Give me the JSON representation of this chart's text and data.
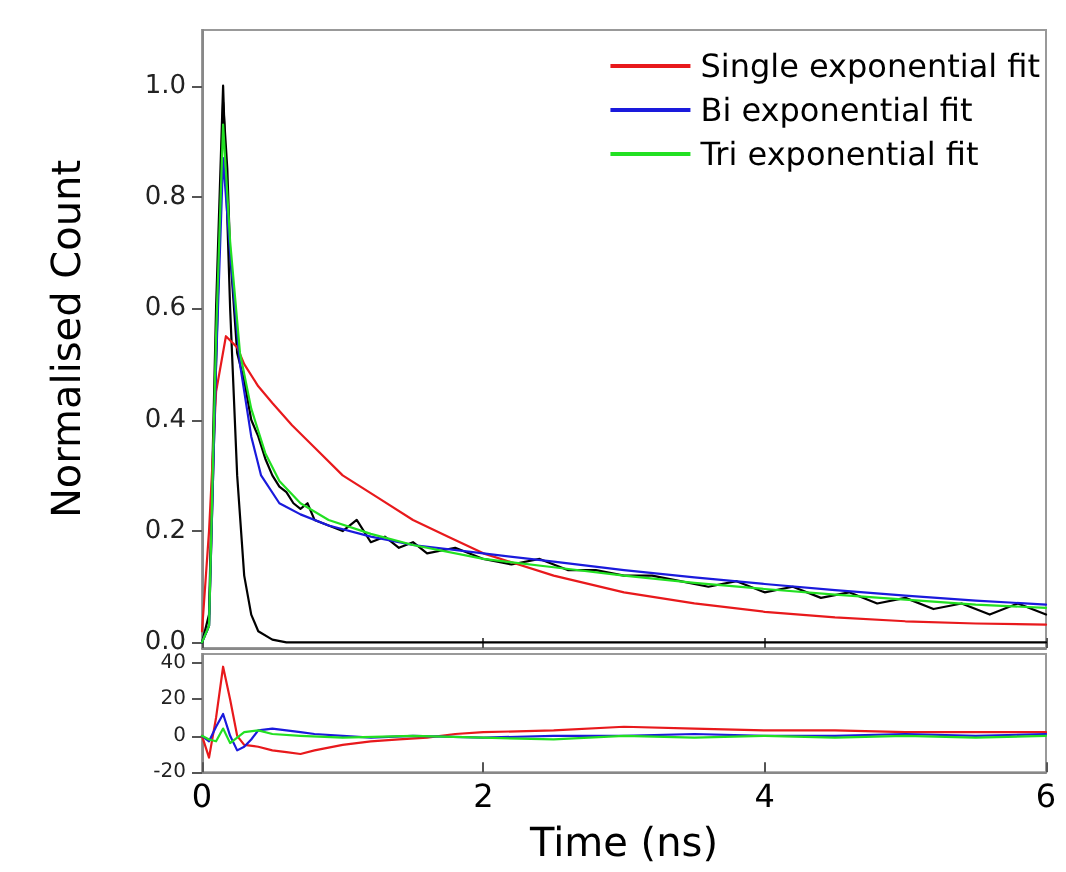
{
  "chart_data": [
    {
      "type": "line",
      "ylabel": "Normalised Count",
      "xlim": [
        0,
        6
      ],
      "xticks": [
        0,
        2,
        4,
        6
      ],
      "ylim": [
        -0.01,
        1.1
      ],
      "yticks": [
        {
          "value": 0,
          "label": "0.0"
        },
        0.2,
        0.4,
        0.6,
        0.8,
        {
          "value": 1,
          "label": "1.0"
        }
      ],
      "tick_labels": "y",
      "grid": false,
      "legend": "top right",
      "marker": "none",
      "line_style": "solid",
      "series": [
        {
          "color": "#000000",
          "x": [
            0,
            0.05,
            0.1,
            0.15,
            0.18,
            0.2,
            0.25,
            0.3,
            0.35,
            0.4,
            0.45,
            0.5,
            0.55,
            0.6,
            0.65,
            0.7,
            0.75,
            0.8,
            0.9,
            1.0,
            1.1,
            1.2,
            1.3,
            1.4,
            1.5,
            1.6,
            1.8,
            2.0,
            2.2,
            2.4,
            2.6,
            2.8,
            3.0,
            3.2,
            3.4,
            3.6,
            3.8,
            4.0,
            4.2,
            4.4,
            4.6,
            4.8,
            5.0,
            5.2,
            5.4,
            5.6,
            5.8,
            6.0
          ],
          "values": [
            0,
            0.03,
            0.5,
            0.97,
            0.85,
            0.7,
            0.52,
            0.47,
            0.4,
            0.37,
            0.33,
            0.3,
            0.28,
            0.27,
            0.25,
            0.24,
            0.25,
            0.22,
            0.21,
            0.2,
            0.22,
            0.18,
            0.19,
            0.17,
            0.18,
            0.16,
            0.17,
            0.15,
            0.14,
            0.15,
            0.13,
            0.13,
            0.12,
            0.12,
            0.11,
            0.1,
            0.11,
            0.09,
            0.1,
            0.08,
            0.09,
            0.07,
            0.08,
            0.06,
            0.07,
            0.05,
            0.07,
            0.05
          ]
        },
        {
          "color": "#000000",
          "x": [
            0,
            0.05,
            0.1,
            0.15,
            0.2,
            0.25,
            0.3,
            0.35,
            0.4,
            0.5,
            0.6,
            6.0
          ],
          "values": [
            0,
            0.05,
            0.6,
            1.0,
            0.6,
            0.3,
            0.12,
            0.05,
            0.02,
            0.005,
            0,
            0
          ]
        },
        {
          "name": "Single exponential fit",
          "color": "#e8191c",
          "x": [
            0,
            0.05,
            0.1,
            0.17,
            0.25,
            0.3,
            0.4,
            0.5,
            0.64,
            0.8,
            1.0,
            1.25,
            1.5,
            1.75,
            2.0,
            2.5,
            3.0,
            3.5,
            4.0,
            4.5,
            5.0,
            5.5,
            6.0
          ],
          "values": [
            0.02,
            0.2,
            0.45,
            0.55,
            0.53,
            0.5,
            0.46,
            0.43,
            0.39,
            0.35,
            0.3,
            0.26,
            0.22,
            0.19,
            0.16,
            0.12,
            0.09,
            0.07,
            0.055,
            0.045,
            0.038,
            0.034,
            0.032
          ]
        },
        {
          "name": "Bi exponential fit",
          "color": "#1a1adc",
          "x": [
            0,
            0.05,
            0.1,
            0.15,
            0.2,
            0.27,
            0.35,
            0.42,
            0.55,
            0.7,
            0.9,
            1.2,
            1.5,
            2.0,
            2.5,
            3.0,
            3.5,
            4.0,
            4.5,
            5.0,
            5.5,
            6.0
          ],
          "values": [
            0,
            0.03,
            0.5,
            0.87,
            0.7,
            0.5,
            0.37,
            0.3,
            0.25,
            0.23,
            0.21,
            0.19,
            0.175,
            0.16,
            0.145,
            0.13,
            0.117,
            0.105,
            0.094,
            0.084,
            0.075,
            0.068
          ]
        },
        {
          "name": "Tri exponential fit",
          "color": "#22e022",
          "x": [
            0,
            0.05,
            0.1,
            0.15,
            0.2,
            0.27,
            0.35,
            0.45,
            0.55,
            0.7,
            0.9,
            1.2,
            1.5,
            2.0,
            2.5,
            3.0,
            3.5,
            4.0,
            4.5,
            5.0,
            5.5,
            6.0
          ],
          "values": [
            0,
            0.03,
            0.55,
            0.93,
            0.72,
            0.52,
            0.42,
            0.34,
            0.29,
            0.25,
            0.22,
            0.195,
            0.175,
            0.15,
            0.135,
            0.12,
            0.107,
            0.096,
            0.086,
            0.077,
            0.068,
            0.062
          ]
        }
      ]
    },
    {
      "type": "line",
      "xlabel": "Time (ns)",
      "xlim": [
        0,
        6
      ],
      "xticks": [
        0,
        2,
        4,
        6
      ],
      "ylim": [
        -20,
        45
      ],
      "yticks": [
        -20,
        0,
        20,
        40
      ],
      "grid": false,
      "marker": "none",
      "line_style": "solid",
      "series": [
        {
          "color": "#e8191c",
          "x": [
            0,
            0.05,
            0.1,
            0.15,
            0.2,
            0.25,
            0.3,
            0.4,
            0.5,
            0.6,
            0.7,
            0.8,
            1.0,
            1.2,
            1.4,
            1.6,
            1.8,
            2.0,
            2.5,
            3.0,
            3.5,
            4.0,
            4.5,
            5.0,
            5.5,
            6.0
          ],
          "values": [
            0,
            -12,
            10,
            38,
            20,
            0,
            -5,
            -6,
            -8,
            -9,
            -10,
            -8,
            -5,
            -3,
            -2,
            -1,
            1,
            2,
            3,
            5,
            4,
            3,
            3,
            2,
            2,
            2
          ]
        },
        {
          "color": "#1a1adc",
          "x": [
            0,
            0.05,
            0.1,
            0.15,
            0.2,
            0.25,
            0.3,
            0.35,
            0.4,
            0.5,
            0.6,
            0.7,
            0.8,
            1.0,
            1.2,
            1.5,
            2.0,
            2.5,
            3.0,
            3.5,
            4.0,
            4.5,
            5.0,
            5.5,
            6.0
          ],
          "values": [
            0,
            -3,
            5,
            12,
            0,
            -8,
            -6,
            -2,
            3,
            4,
            3,
            2,
            1,
            0,
            -1,
            0,
            -1,
            0,
            0,
            1,
            0,
            0,
            1,
            0,
            1
          ]
        },
        {
          "color": "#22e022",
          "x": [
            0,
            0.05,
            0.1,
            0.15,
            0.2,
            0.25,
            0.3,
            0.4,
            0.5,
            0.7,
            1.0,
            1.5,
            2.0,
            2.5,
            3.0,
            3.5,
            4.0,
            4.5,
            5.0,
            5.5,
            6.0
          ],
          "values": [
            0,
            -2,
            -3,
            4,
            -4,
            -1,
            2,
            3,
            1,
            0,
            -1,
            0,
            -1,
            -2,
            0,
            -1,
            0,
            -1,
            0,
            -1,
            0
          ]
        }
      ]
    }
  ]
}
